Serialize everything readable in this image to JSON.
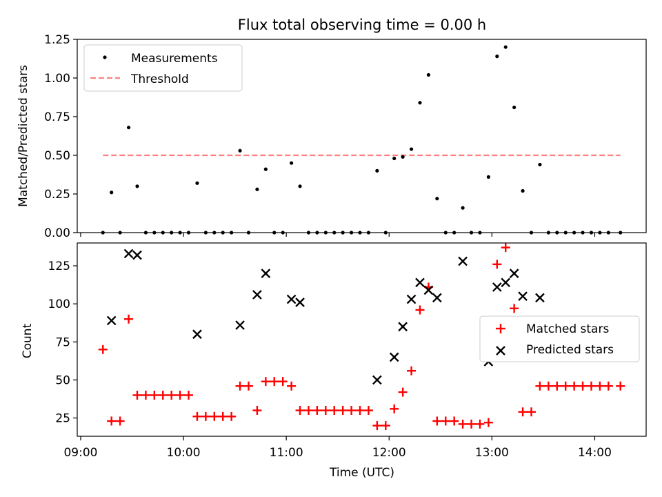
{
  "figure_title": "Flux total observing time = 0.00 h",
  "colors": {
    "measurement": "#000000",
    "threshold": "#ff7f7f",
    "matched": "#ff0000",
    "predicted": "#000000"
  },
  "chart_data": [
    {
      "type": "scatter",
      "title": "Flux total observing time = 0.00 h",
      "xlabel": "",
      "ylabel": "Matched/Predicted stars",
      "x_tick_labels": [],
      "y_ticks": [
        0.0,
        0.25,
        0.5,
        0.75,
        1.0,
        1.25
      ],
      "y_tick_labels": [
        "0.00",
        "0.25",
        "0.50",
        "0.75",
        "1.00",
        "1.25"
      ],
      "ylim": [
        0,
        1.25
      ],
      "xlim": [
        "09:00",
        "14:30"
      ],
      "legend_position": "upper left",
      "threshold": {
        "name": "Threshold",
        "value": 0.5,
        "x_start": "09:13",
        "x_end": "14:15",
        "style": "dashed"
      },
      "series": [
        {
          "name": "Measurements",
          "marker": "dot",
          "x": [
            "09:13",
            "09:18",
            "09:23",
            "09:28",
            "09:33",
            "09:38",
            "09:43",
            "09:48",
            "09:53",
            "09:58",
            "10:03",
            "10:08",
            "10:13",
            "10:18",
            "10:23",
            "10:28",
            "10:33",
            "10:38",
            "10:43",
            "10:48",
            "10:53",
            "10:58",
            "11:03",
            "11:08",
            "11:13",
            "11:18",
            "11:23",
            "11:28",
            "11:33",
            "11:38",
            "11:43",
            "11:48",
            "11:53",
            "11:58",
            "12:03",
            "12:08",
            "12:13",
            "12:18",
            "12:23",
            "12:28",
            "12:33",
            "12:38",
            "12:43",
            "12:48",
            "12:53",
            "12:58",
            "13:03",
            "13:08",
            "13:13",
            "13:18",
            "13:23",
            "13:28",
            "13:33",
            "13:38",
            "13:43",
            "13:48",
            "13:53",
            "13:58",
            "14:03",
            "14:08",
            "14:15"
          ],
          "values": [
            0,
            0.26,
            0,
            0.68,
            0.3,
            0,
            0,
            0,
            0,
            0,
            0,
            0.32,
            0,
            0,
            0,
            0,
            0.53,
            0,
            0.28,
            0.41,
            0,
            0,
            0.45,
            0.3,
            0,
            0,
            0,
            0,
            0,
            0,
            0,
            0,
            0.4,
            0,
            0.48,
            0.49,
            0.54,
            0.84,
            1.02,
            0.22,
            0,
            0,
            0.16,
            0,
            0,
            0.36,
            1.14,
            1.2,
            0.81,
            0.27,
            0,
            0.44,
            0,
            0,
            0,
            0,
            0,
            0,
            0,
            0,
            0
          ]
        }
      ]
    },
    {
      "type": "scatter",
      "title": "",
      "xlabel": "Time (UTC)",
      "ylabel": "Count",
      "x_ticks": [
        "09:00",
        "10:00",
        "11:00",
        "12:00",
        "13:00",
        "14:00"
      ],
      "y_ticks": [
        25,
        50,
        75,
        100,
        125
      ],
      "y_tick_labels": [
        "25",
        "50",
        "75",
        "100",
        "125"
      ],
      "ylim": [
        13,
        140
      ],
      "xlim": [
        "09:00",
        "14:30"
      ],
      "legend_position": "center right",
      "series": [
        {
          "name": "Matched stars",
          "marker": "plus",
          "x": [
            "09:13",
            "09:18",
            "09:23",
            "09:28",
            "09:33",
            "09:38",
            "09:43",
            "09:48",
            "09:53",
            "09:58",
            "10:03",
            "10:08",
            "10:13",
            "10:18",
            "10:23",
            "10:28",
            "10:33",
            "10:38",
            "10:43",
            "10:48",
            "10:53",
            "10:58",
            "11:03",
            "11:08",
            "11:13",
            "11:18",
            "11:23",
            "11:28",
            "11:33",
            "11:38",
            "11:43",
            "11:48",
            "11:53",
            "11:58",
            "12:03",
            "12:08",
            "12:13",
            "12:18",
            "12:23",
            "12:28",
            "12:33",
            "12:38",
            "12:43",
            "12:48",
            "12:53",
            "12:58",
            "13:03",
            "13:08",
            "13:13",
            "13:18",
            "13:23",
            "13:28",
            "13:33",
            "13:38",
            "13:43",
            "13:48",
            "13:53",
            "13:58",
            "14:03",
            "14:08",
            "14:15"
          ],
          "values": [
            70,
            23,
            23,
            90,
            40,
            40,
            40,
            40,
            40,
            40,
            40,
            26,
            26,
            26,
            26,
            26,
            46,
            46,
            30,
            49,
            49,
            49,
            46,
            30,
            30,
            30,
            30,
            30,
            30,
            30,
            30,
            30,
            20,
            20,
            31,
            42,
            56,
            96,
            111,
            23,
            23,
            23,
            21,
            21,
            21,
            22,
            126,
            137,
            97,
            29,
            29,
            46,
            46,
            46,
            46,
            46,
            46,
            46,
            46,
            46,
            46
          ]
        },
        {
          "name": "Predicted stars",
          "marker": "x",
          "x": [
            "09:18",
            "09:28",
            "09:33",
            "10:08",
            "10:33",
            "10:43",
            "10:48",
            "11:03",
            "11:08",
            "11:53",
            "12:03",
            "12:08",
            "12:13",
            "12:18",
            "12:23",
            "12:28",
            "12:43",
            "12:58",
            "13:03",
            "13:08",
            "13:13",
            "13:18",
            "13:28"
          ],
          "values": [
            89,
            133,
            132,
            80,
            86,
            106,
            120,
            103,
            101,
            50,
            65,
            85,
            103,
            114,
            109,
            104,
            128,
            62,
            111,
            114,
            120,
            105,
            104
          ]
        }
      ]
    }
  ]
}
